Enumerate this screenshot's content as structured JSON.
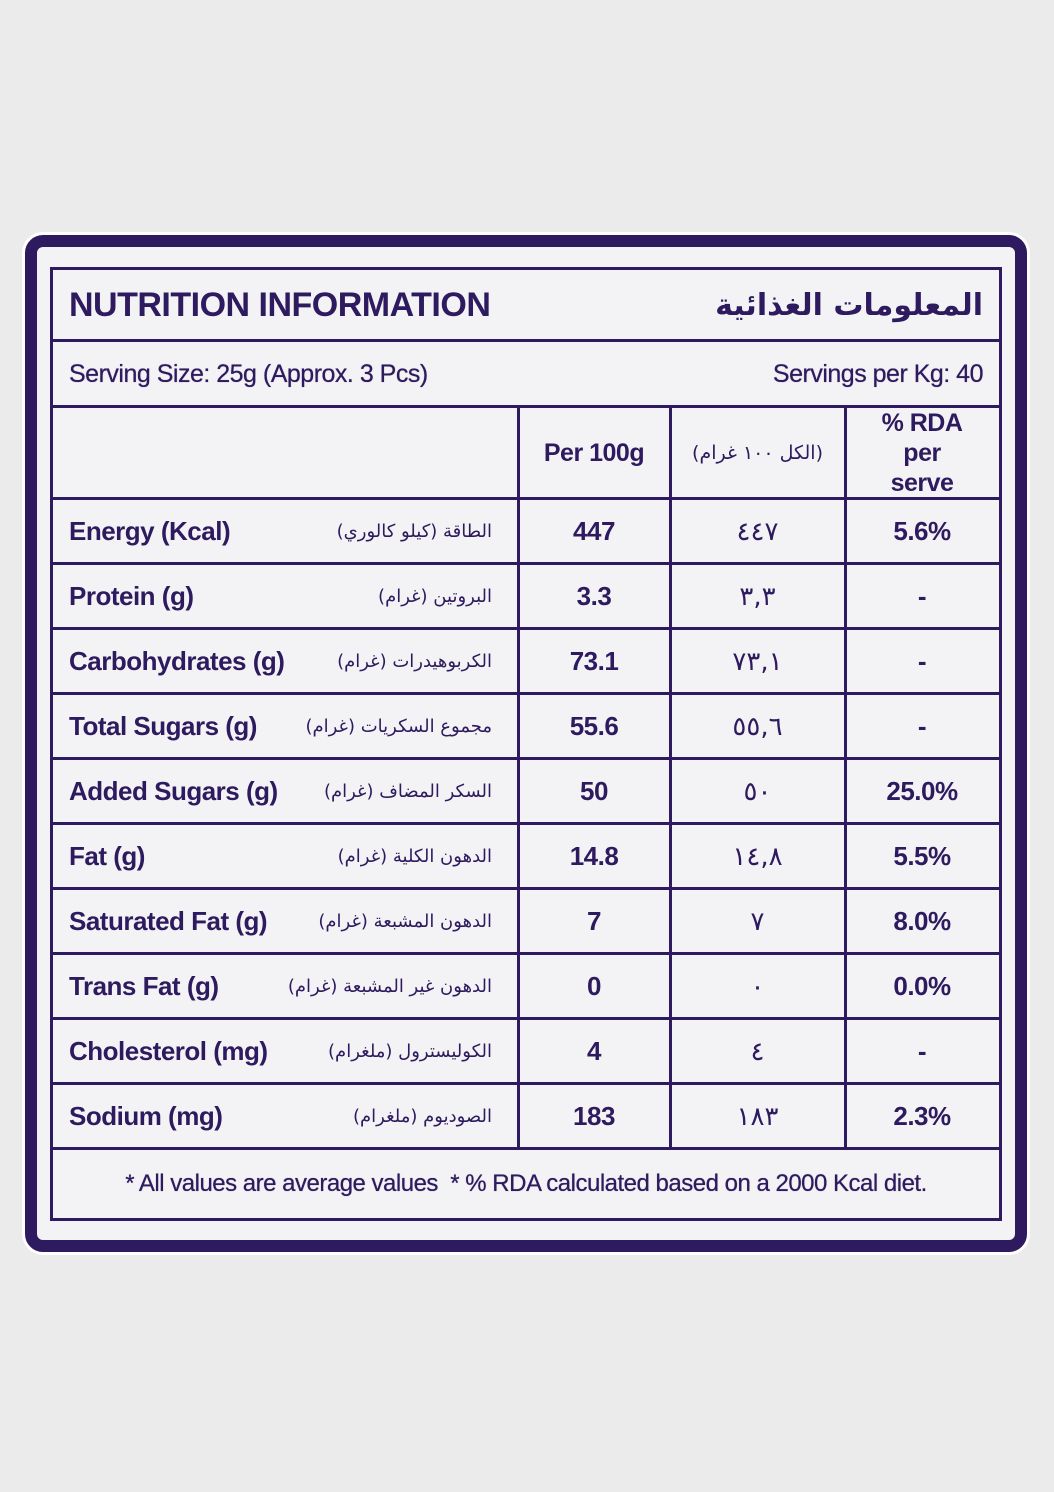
{
  "header": {
    "title": "NUTRITION INFORMATION",
    "title_ar": "المعلومات الغذائية"
  },
  "serving": {
    "size": "Serving Size: 25g (Approx. 3 Pcs)",
    "per_kg": "Servings per Kg: 40"
  },
  "table": {
    "columns": [
      "Per 100g",
      "(الكل ١٠٠ غرام)",
      "% RDA per serve"
    ],
    "rows": [
      {
        "label": "Energy (Kcal)",
        "label_ar": "الطاقة (كيلو كالوري)",
        "per100g": 447,
        "per100g_ar": "٤٤٧",
        "rda": "5.6%"
      },
      {
        "label": "Protein (g)",
        "label_ar": "البروتين (غرام)",
        "per100g": 3.3,
        "per100g_ar": "٣,٣",
        "rda": "-"
      },
      {
        "label": "Carbohydrates (g)",
        "label_ar": "الكربوهيدرات (غرام)",
        "per100g": 73.1,
        "per100g_ar": "٧٣,١",
        "rda": "-"
      },
      {
        "label": "Total Sugars (g)",
        "label_ar": "مجموع السكريات (غرام)",
        "per100g": 55.6,
        "per100g_ar": "٥٥,٦",
        "rda": "-"
      },
      {
        "label": "Added Sugars (g)",
        "label_ar": "السكر المضاف (غرام)",
        "per100g": 50,
        "per100g_ar": "٥٠",
        "rda": "25.0%"
      },
      {
        "label": "Fat (g)",
        "label_ar": "الدهون الكلية (غرام)",
        "per100g": 14.8,
        "per100g_ar": "١٤,٨",
        "rda": "5.5%"
      },
      {
        "label": "Saturated Fat (g)",
        "label_ar": "الدهون المشبعة (غرام)",
        "per100g": 7,
        "per100g_ar": "٧",
        "rda": "8.0%"
      },
      {
        "label": "Trans Fat (g)",
        "label_ar": "الدهون غير المشبعة (غرام)",
        "per100g": 0,
        "per100g_ar": "٠",
        "rda": "0.0%"
      },
      {
        "label": "Cholesterol (mg)",
        "label_ar": "الكوليسترول (ملغرام)",
        "per100g": 4,
        "per100g_ar": "٤",
        "rda": "-"
      },
      {
        "label": "Sodium (mg)",
        "label_ar": "الصوديوم (ملغرام)",
        "per100g": 183,
        "per100g_ar": "١٨٣",
        "rda": "2.3%"
      }
    ]
  },
  "footer": {
    "note": "* All values are average values  * % RDA calculated based on a 2000 Kcal diet."
  }
}
